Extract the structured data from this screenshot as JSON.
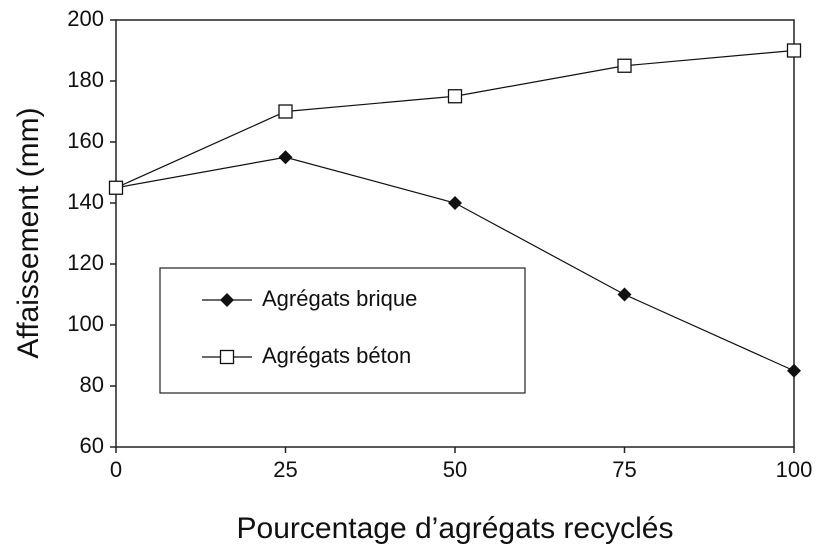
{
  "chart_data": {
    "type": "line",
    "x_label": "Pourcentage d’agrégats recyclés",
    "y_label": "Affaissement (mm)",
    "x": [
      0,
      25,
      50,
      75,
      100
    ],
    "series": [
      {
        "name": "Agrégats brique",
        "color": "#111111",
        "marker": "filled-diamond",
        "values": [
          145,
          155,
          140,
          110,
          85
        ]
      },
      {
        "name": "Agrégats béton",
        "color": "#111111",
        "marker": "open-square",
        "values": [
          145,
          170,
          175,
          185,
          190
        ]
      }
    ],
    "xlim": [
      0,
      100
    ],
    "xticks": [
      0,
      25,
      50,
      75,
      100
    ],
    "ylim": [
      60,
      200
    ],
    "yticks": [
      60,
      80,
      100,
      120,
      140,
      160,
      180,
      200
    ],
    "grid": false,
    "legend": "lower left"
  }
}
